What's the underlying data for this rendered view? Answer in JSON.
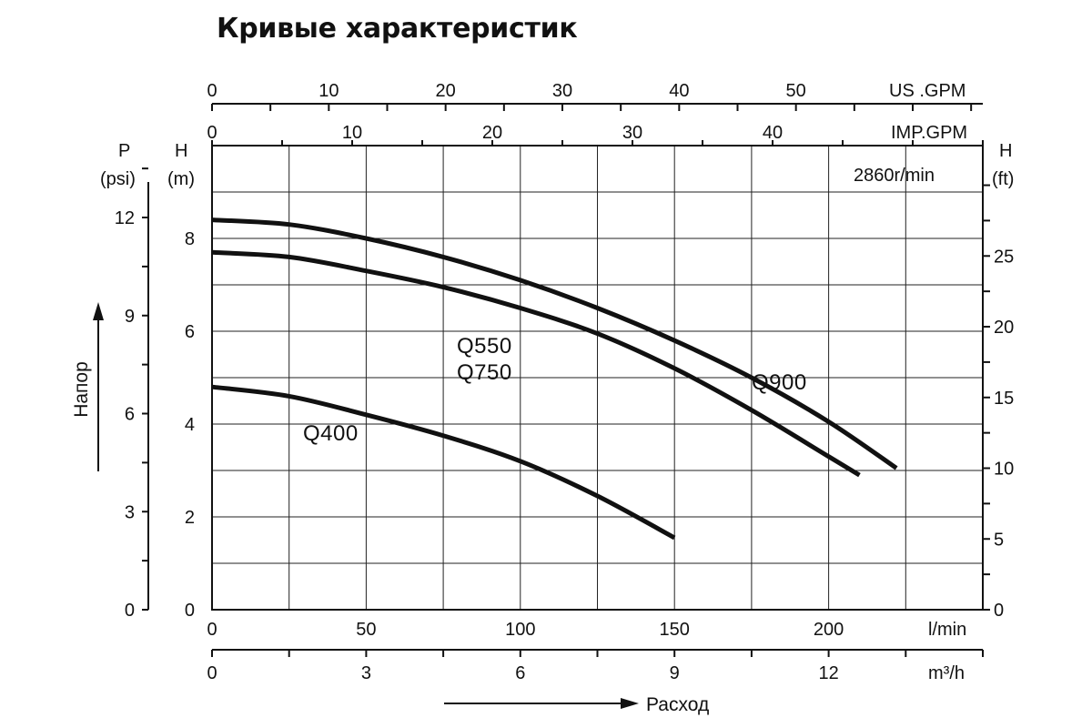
{
  "title": "Кривые характеристик",
  "chart_data": {
    "type": "line",
    "speed_note": "2860r/min",
    "xlabel": "Расход",
    "ylabel": "Напор",
    "x_axis_lmin": {
      "unit": "l/min",
      "range": [
        0,
        250
      ],
      "ticks": [
        0,
        50,
        100,
        150,
        200
      ]
    },
    "x_axis_m3h": {
      "unit": "m³/h",
      "range": [
        0,
        15
      ],
      "ticks": [
        0,
        3,
        6,
        9,
        12
      ]
    },
    "x_axis_usgpm": {
      "unit": "US .GPM",
      "range": [
        0,
        66
      ],
      "ticks": [
        0,
        10,
        20,
        30,
        40,
        50
      ]
    },
    "x_axis_impgpm": {
      "unit": "IMP.GPM",
      "range": [
        0,
        55
      ],
      "ticks": [
        0,
        10,
        20,
        30,
        40
      ]
    },
    "y_axis_m": {
      "unit_top": "H",
      "unit_bottom": "(m)",
      "range": [
        0,
        10
      ],
      "ticks": [
        0,
        2,
        4,
        6,
        8
      ]
    },
    "y_axis_psi": {
      "unit_top": "P",
      "unit_bottom": "(psi)",
      "range": [
        0,
        14.2
      ],
      "ticks": [
        0,
        3,
        6,
        9,
        12
      ]
    },
    "y_axis_ft": {
      "unit_top": "H",
      "unit_bottom": "(ft)",
      "range": [
        0,
        32.8
      ],
      "ticks": [
        0,
        5,
        10,
        15,
        20,
        25
      ]
    },
    "series": [
      {
        "name": "Q400",
        "x": [
          0,
          25,
          50,
          75,
          100,
          125,
          150
        ],
        "y": [
          4.8,
          4.6,
          4.2,
          3.75,
          3.2,
          2.45,
          1.55
        ]
      },
      {
        "name": "Q550",
        "x": [
          0,
          25,
          50,
          75,
          100,
          125,
          150,
          175,
          200,
          210
        ],
        "y": [
          7.7,
          7.6,
          7.3,
          6.95,
          6.5,
          5.95,
          5.2,
          4.3,
          3.3,
          2.9
        ]
      },
      {
        "name": "Q750",
        "x": [
          0,
          25,
          50,
          75,
          100,
          125,
          150,
          175,
          200,
          210
        ],
        "y": [
          7.7,
          7.6,
          7.3,
          6.95,
          6.5,
          5.95,
          5.2,
          4.3,
          3.3,
          2.9
        ]
      },
      {
        "name": "Q900",
        "x": [
          0,
          25,
          50,
          75,
          100,
          125,
          150,
          175,
          200,
          222
        ],
        "y": [
          8.4,
          8.3,
          8.0,
          7.6,
          7.1,
          6.5,
          5.8,
          5.0,
          4.05,
          3.05
        ]
      }
    ]
  }
}
